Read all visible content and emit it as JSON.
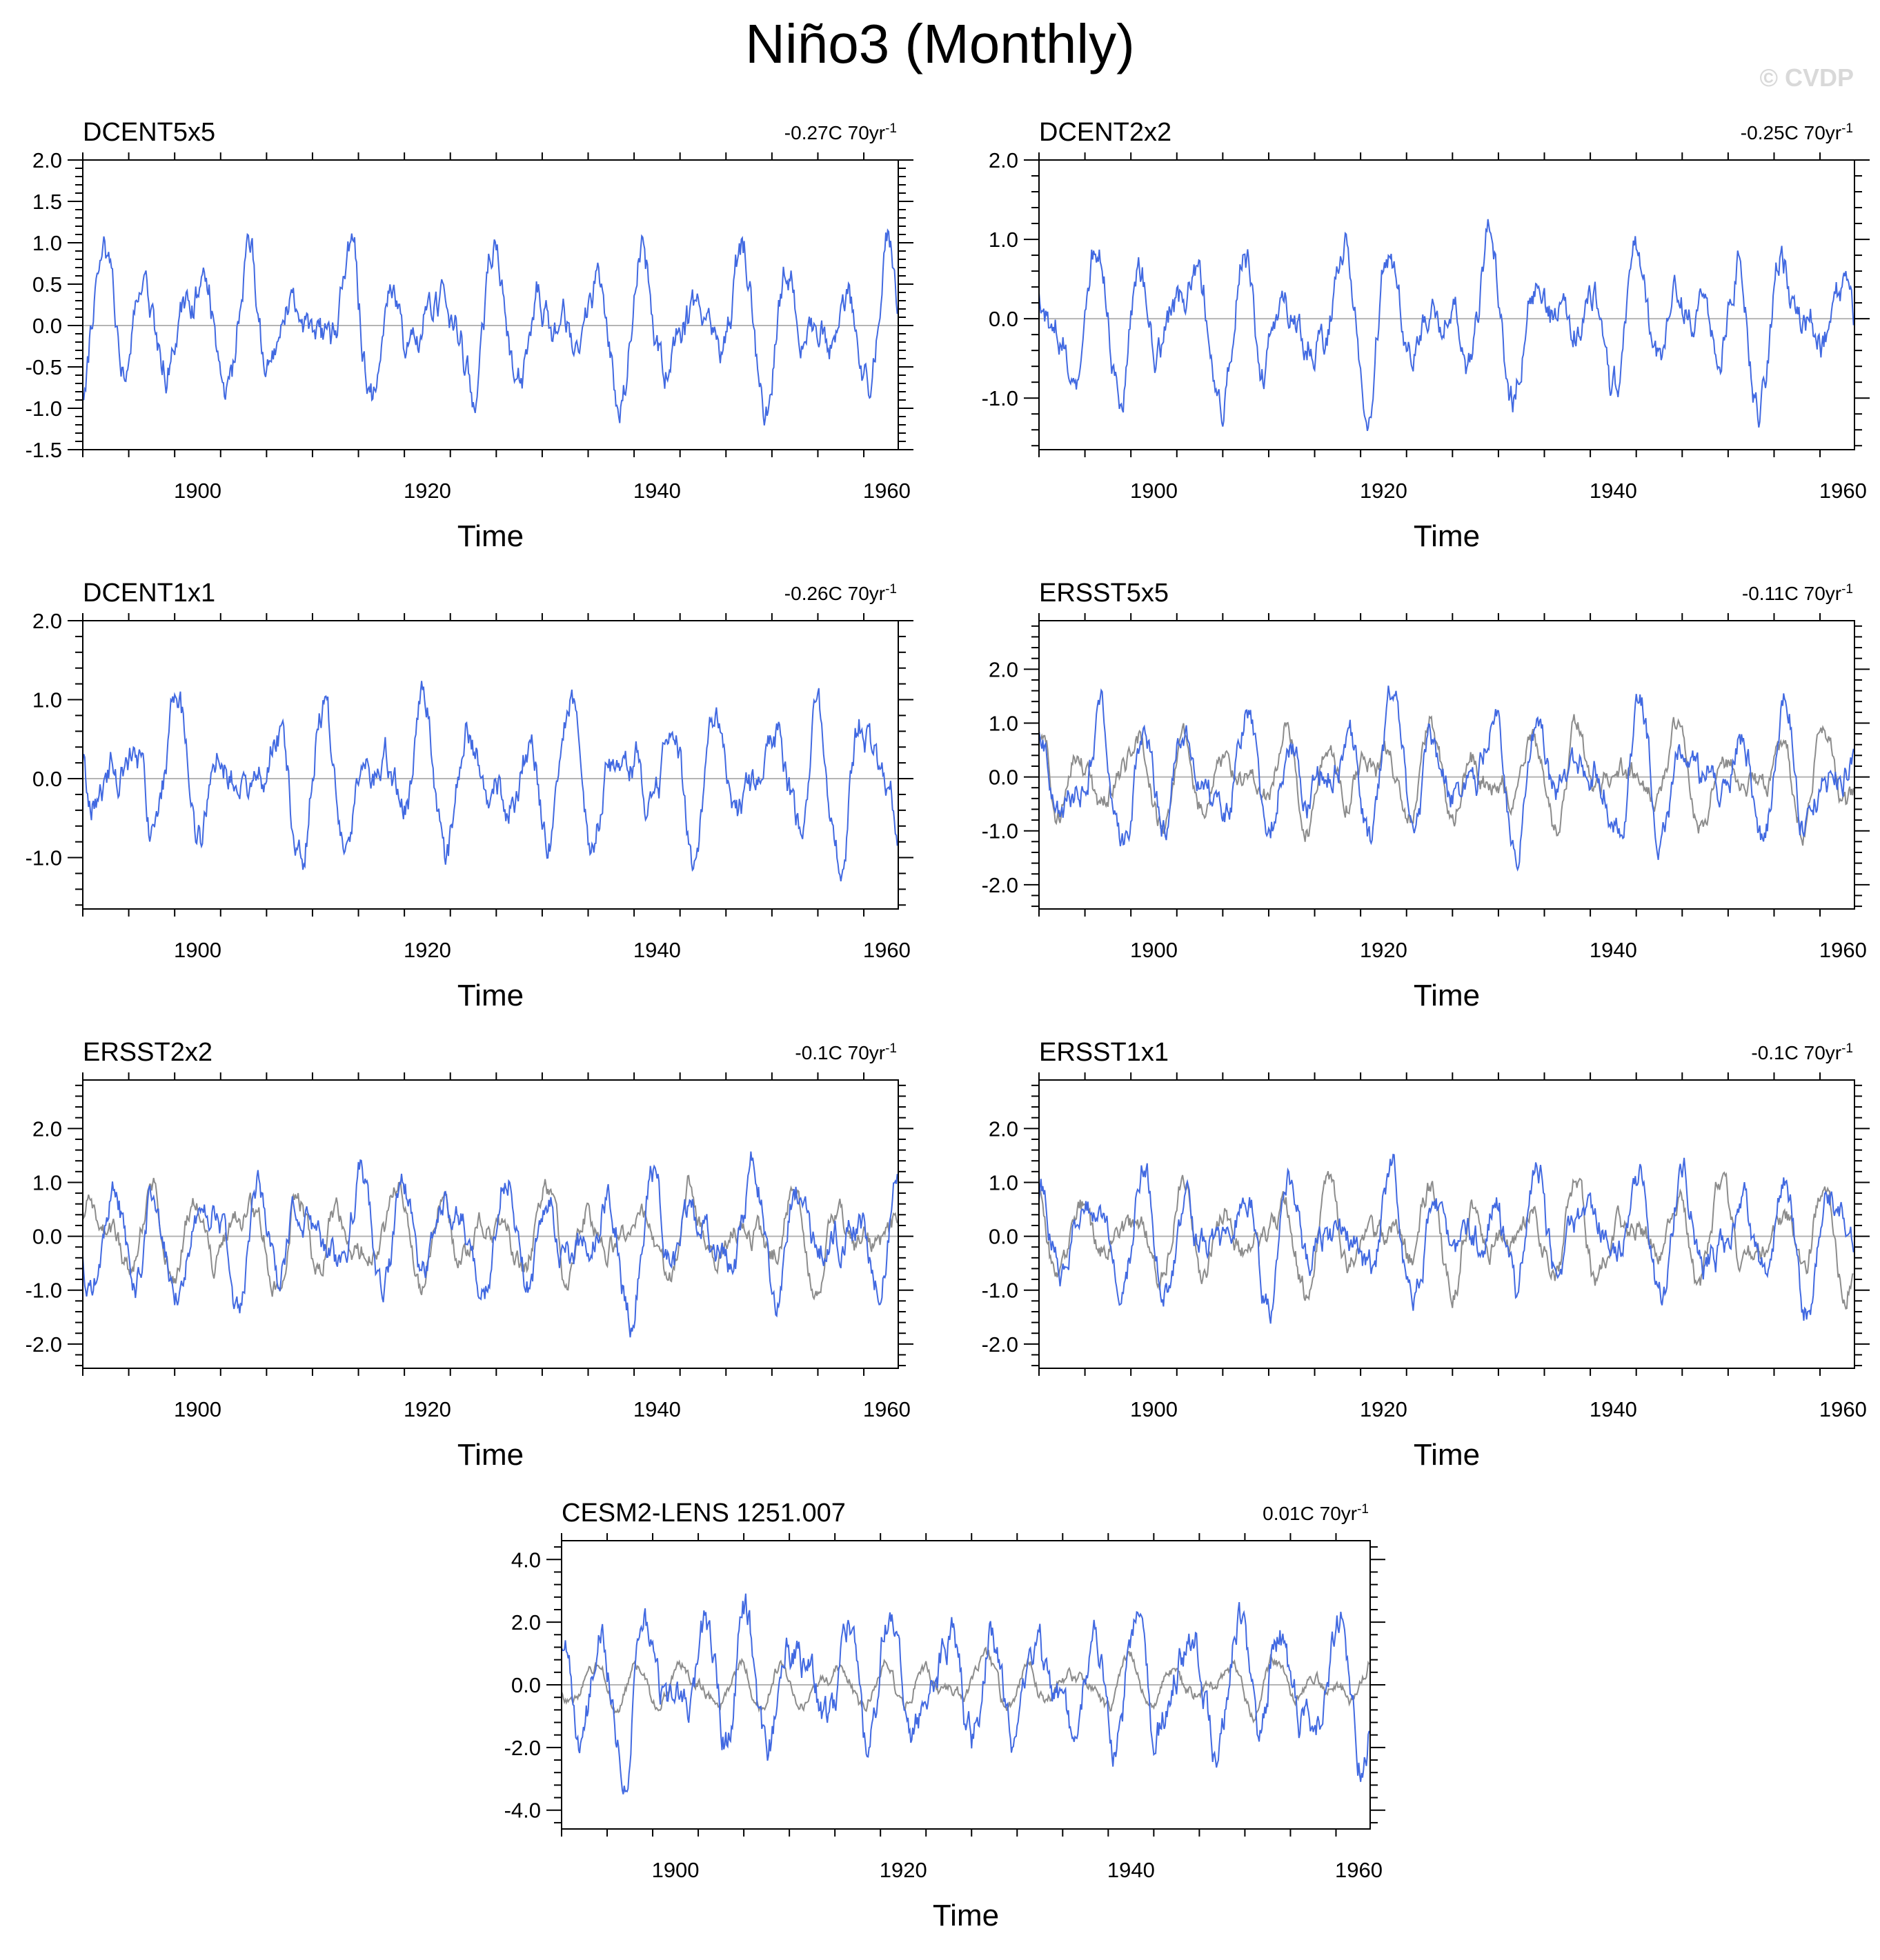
{
  "title": "Niño3 (Monthly)",
  "watermark": "© CVDP",
  "colors": {
    "observed": "#4169E1",
    "reference": "#8c8c8c",
    "zero_line": "#b4b4b4",
    "axis": "#000000"
  },
  "chart_data": [
    {
      "type": "line",
      "name": "DCENT5x5",
      "trend_value": "-0.27C 70yr",
      "trend_exp": "-1",
      "xlabel": "Time",
      "ylabel": "",
      "xlim": [
        1890,
        1961
      ],
      "ylim": [
        -1.5,
        2.0
      ],
      "xticks": [
        "1900",
        "1920",
        "1940",
        "1960"
      ],
      "yticks": [
        "-1.5",
        "-1.0",
        "-0.5",
        "0.0",
        "0.5",
        "1.0",
        "1.5",
        "2.0"
      ],
      "series": [
        {
          "name": "DCENT5x5",
          "color": "#4169E1",
          "seed": 11,
          "amp": 1.0,
          "values": []
        }
      ]
    },
    {
      "type": "line",
      "name": "DCENT2x2",
      "trend_value": "-0.25C 70yr",
      "trend_exp": "-1",
      "xlabel": "Time",
      "ylabel": "",
      "xlim": [
        1890,
        1961
      ],
      "ylim": [
        -1.65,
        2.0
      ],
      "xticks": [
        "1900",
        "1920",
        "1940",
        "1960"
      ],
      "yticks": [
        "-1.0",
        "0.0",
        "1.0",
        "2.0"
      ],
      "series": [
        {
          "name": "DCENT2x2",
          "color": "#4169E1",
          "seed": 12,
          "amp": 1.0,
          "values": []
        }
      ]
    },
    {
      "type": "line",
      "name": "DCENT1x1",
      "trend_value": "-0.26C 70yr",
      "trend_exp": "-1",
      "xlabel": "Time",
      "ylabel": "",
      "xlim": [
        1890,
        1961
      ],
      "ylim": [
        -1.65,
        2.0
      ],
      "xticks": [
        "1900",
        "1920",
        "1940",
        "1960"
      ],
      "yticks": [
        "-1.0",
        "0.0",
        "1.0",
        "2.0"
      ],
      "series": [
        {
          "name": "DCENT1x1",
          "color": "#4169E1",
          "seed": 13,
          "amp": 1.0,
          "values": []
        }
      ]
    },
    {
      "type": "line",
      "name": "ERSST5x5",
      "trend_value": "-0.11C 70yr",
      "trend_exp": "-1",
      "xlabel": "Time",
      "ylabel": "",
      "xlim": [
        1890,
        1961
      ],
      "ylim": [
        -2.45,
        2.9
      ],
      "xticks": [
        "1900",
        "1920",
        "1940",
        "1960"
      ],
      "yticks": [
        "-2.0",
        "-1.0",
        "0.0",
        "1.0",
        "2.0"
      ],
      "series": [
        {
          "name": "ERSST5x5",
          "color": "#4169E1",
          "seed": 21,
          "amp": 1.3,
          "values": []
        },
        {
          "name": "reference",
          "color": "#8c8c8c",
          "seed": 22,
          "amp": 0.95,
          "values": []
        }
      ]
    },
    {
      "type": "line",
      "name": "ERSST2x2",
      "trend_value": "-0.1C 70yr",
      "trend_exp": "-1",
      "xlabel": "Time",
      "ylabel": "",
      "xlim": [
        1890,
        1961
      ],
      "ylim": [
        -2.45,
        2.9
      ],
      "xticks": [
        "1900",
        "1920",
        "1940",
        "1960"
      ],
      "yticks": [
        "-2.0",
        "-1.0",
        "0.0",
        "1.0",
        "2.0"
      ],
      "series": [
        {
          "name": "ERSST2x2",
          "color": "#4169E1",
          "seed": 23,
          "amp": 1.3,
          "values": []
        },
        {
          "name": "reference",
          "color": "#8c8c8c",
          "seed": 24,
          "amp": 0.95,
          "values": []
        }
      ]
    },
    {
      "type": "line",
      "name": "ERSST1x1",
      "trend_value": "-0.1C 70yr",
      "trend_exp": "-1",
      "xlabel": "Time",
      "ylabel": "",
      "xlim": [
        1890,
        1961
      ],
      "ylim": [
        -2.45,
        2.9
      ],
      "xticks": [
        "1900",
        "1920",
        "1940",
        "1960"
      ],
      "yticks": [
        "-2.0",
        "-1.0",
        "0.0",
        "1.0",
        "2.0"
      ],
      "series": [
        {
          "name": "ERSST1x1",
          "color": "#4169E1",
          "seed": 25,
          "amp": 1.3,
          "values": []
        },
        {
          "name": "reference",
          "color": "#8c8c8c",
          "seed": 26,
          "amp": 0.95,
          "values": []
        }
      ]
    },
    {
      "type": "line",
      "name": "CESM2-LENS 1251.007",
      "trend_value": "0.01C 70yr",
      "trend_exp": "-1",
      "xlabel": "Time",
      "ylabel": "",
      "xlim": [
        1890,
        1961
      ],
      "ylim": [
        -4.6,
        4.6
      ],
      "xticks": [
        "1900",
        "1920",
        "1940",
        "1960"
      ],
      "yticks": [
        "-4.0",
        "-2.0",
        "0.0",
        "2.0",
        "4.0"
      ],
      "series": [
        {
          "name": "CESM2-LENS 1251.007",
          "color": "#4169E1",
          "seed": 31,
          "amp": 2.6,
          "values": []
        },
        {
          "name": "reference",
          "color": "#8c8c8c",
          "seed": 32,
          "amp": 0.9,
          "values": []
        }
      ]
    }
  ]
}
